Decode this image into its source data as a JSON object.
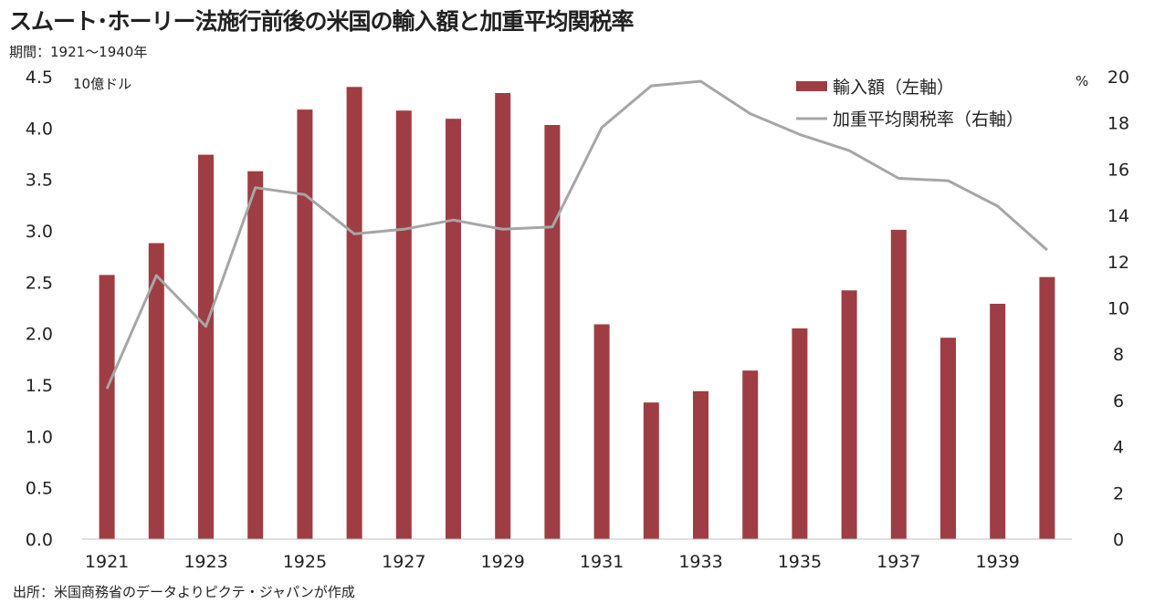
{
  "title": "スムート･ホーリー法施行前後の米国の輸入額と加重平均関税率",
  "period": "期間：1921～1940年",
  "source": "出所：米国商務省のデータよりピクテ・ジャパンが作成",
  "chart_data": {
    "type": "bar",
    "categories": [
      "1921",
      "1922",
      "1923",
      "1924",
      "1925",
      "1926",
      "1927",
      "1928",
      "1929",
      "1930",
      "1931",
      "1932",
      "1933",
      "1934",
      "1935",
      "1936",
      "1937",
      "1938",
      "1939",
      "1940"
    ],
    "x_tick_labels": [
      "1921",
      "1923",
      "1925",
      "1927",
      "1929",
      "1931",
      "1933",
      "1935",
      "1937",
      "1939"
    ],
    "left_axis": {
      "unit_label": "10億ドル",
      "ylim": [
        0,
        4.5
      ],
      "ticks": [
        "0.0",
        "0.5",
        "1.0",
        "1.5",
        "2.0",
        "2.5",
        "3.0",
        "3.5",
        "4.0",
        "4.5"
      ]
    },
    "right_axis": {
      "unit_label": "%",
      "ylim": [
        0,
        20
      ],
      "ticks": [
        "0",
        "2",
        "4",
        "6",
        "8",
        "10",
        "12",
        "14",
        "16",
        "18",
        "20"
      ]
    },
    "series": [
      {
        "name": "輸入額（左軸）",
        "type": "bar",
        "axis": "left",
        "color": "#9e3d44",
        "values": [
          2.57,
          2.88,
          3.74,
          3.58,
          4.18,
          4.4,
          4.17,
          4.09,
          4.34,
          4.03,
          2.09,
          1.33,
          1.44,
          1.64,
          2.05,
          2.42,
          3.01,
          1.96,
          2.29,
          2.55
        ]
      },
      {
        "name": "加重平均関税率（右軸）",
        "type": "line",
        "axis": "right",
        "color": "#a6a6a6",
        "values": [
          6.5,
          11.4,
          9.2,
          15.2,
          14.9,
          13.2,
          13.4,
          13.8,
          13.4,
          13.5,
          17.8,
          19.6,
          19.8,
          18.4,
          17.5,
          16.8,
          15.6,
          15.5,
          14.4,
          12.5
        ]
      }
    ],
    "legend_position": "top-right",
    "grid": false
  }
}
